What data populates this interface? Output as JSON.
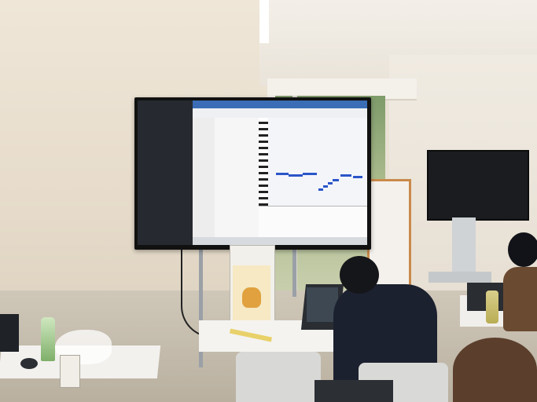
{
  "scene": {
    "caption": "",
    "colors": {
      "monitor_bezel": "#111111",
      "app_titlebar": "#3a6db5",
      "midi_note": "#2b55c8",
      "wall": "#e9e1d4"
    }
  }
}
